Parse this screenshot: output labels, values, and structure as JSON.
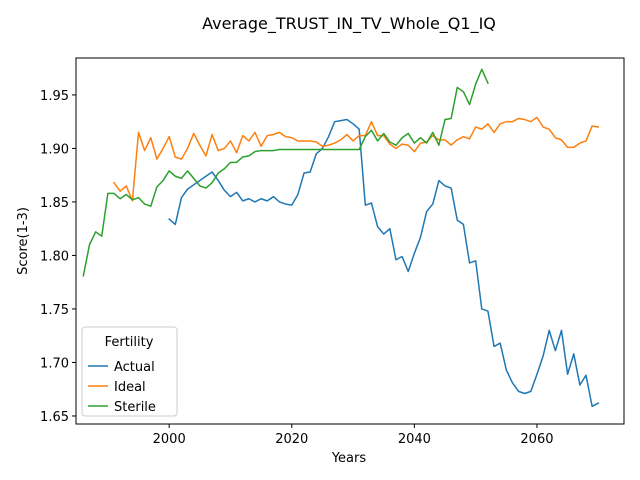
{
  "chart_data": {
    "type": "line",
    "title": "Average_TRUST_IN_TV_Whole_Q1_IQ",
    "xlabel": "Years",
    "ylabel": "Score(1-3)",
    "xlim": [
      1984.8,
      2074.2
    ],
    "ylim": [
      1.6425,
      1.9845
    ],
    "xticks": [
      2000,
      2020,
      2040,
      2060
    ],
    "yticks": [
      1.65,
      1.7,
      1.75,
      1.8,
      1.85,
      1.9,
      1.95
    ],
    "ytick_labels": [
      "1.65",
      "1.70",
      "1.75",
      "1.80",
      "1.85",
      "1.90",
      "1.95"
    ],
    "legend": {
      "title": "Fertility",
      "placement": "lower-left"
    },
    "colors": {
      "Actual": "#1f77b4",
      "Ideal": "#ff7f0e",
      "Sterile": "#2ca02c"
    },
    "series": [
      {
        "name": "Actual",
        "x": [
          2000,
          2001,
          2002,
          2003,
          2004,
          2005,
          2006,
          2007,
          2008,
          2009,
          2010,
          2011,
          2012,
          2013,
          2014,
          2015,
          2016,
          2017,
          2018,
          2019,
          2020,
          2021,
          2022,
          2023,
          2024,
          2025,
          2026,
          2027,
          2028,
          2029,
          2030,
          2031,
          2032,
          2033,
          2034,
          2035,
          2036,
          2037,
          2038,
          2039,
          2040,
          2041,
          2042,
          2043,
          2044,
          2045,
          2046,
          2047,
          2048,
          2049,
          2050,
          2051,
          2052,
          2053,
          2054,
          2055,
          2056,
          2057,
          2058,
          2059,
          2060,
          2061,
          2062,
          2063,
          2064,
          2065,
          2066,
          2067,
          2068,
          2069,
          2070
        ],
        "values": [
          1.834,
          1.829,
          1.854,
          1.862,
          1.866,
          1.87,
          1.874,
          1.878,
          1.87,
          1.861,
          1.855,
          1.859,
          1.851,
          1.853,
          1.85,
          1.853,
          1.851,
          1.855,
          1.85,
          1.848,
          1.847,
          1.857,
          1.877,
          1.878,
          1.895,
          1.9,
          1.911,
          1.925,
          1.926,
          1.927,
          1.923,
          1.918,
          1.847,
          1.849,
          1.827,
          1.82,
          1.825,
          1.796,
          1.799,
          1.785,
          1.802,
          1.817,
          1.841,
          1.848,
          1.87,
          1.865,
          1.863,
          1.833,
          1.829,
          1.793,
          1.795,
          1.75,
          1.748,
          1.715,
          1.718,
          1.693,
          1.681,
          1.673,
          1.671,
          1.673,
          1.689,
          1.706,
          1.73,
          1.711,
          1.73,
          1.689,
          1.708,
          1.679,
          1.688,
          1.659,
          1.662
        ]
      },
      {
        "name": "Ideal",
        "x": [
          1991,
          1992,
          1993,
          1994,
          1995,
          1996,
          1997,
          1998,
          1999,
          2000,
          2001,
          2002,
          2003,
          2004,
          2005,
          2006,
          2007,
          2008,
          2009,
          2010,
          2011,
          2012,
          2013,
          2014,
          2015,
          2016,
          2017,
          2018,
          2019,
          2020,
          2021,
          2022,
          2023,
          2024,
          2025,
          2026,
          2027,
          2028,
          2029,
          2030,
          2031,
          2032,
          2033,
          2034,
          2035,
          2036,
          2037,
          2038,
          2039,
          2040,
          2041,
          2042,
          2043,
          2044,
          2045,
          2046,
          2047,
          2048,
          2049,
          2050,
          2051,
          2052,
          2053,
          2054,
          2055,
          2056,
          2057,
          2058,
          2059,
          2060,
          2061,
          2062,
          2063,
          2064,
          2065,
          2066,
          2067,
          2068,
          2069,
          2070
        ],
        "values": [
          1.868,
          1.86,
          1.865,
          1.851,
          1.915,
          1.898,
          1.91,
          1.89,
          1.9,
          1.911,
          1.892,
          1.89,
          1.9,
          1.914,
          1.903,
          1.893,
          1.913,
          1.898,
          1.9,
          1.907,
          1.896,
          1.912,
          1.907,
          1.915,
          1.902,
          1.912,
          1.913,
          1.915,
          1.911,
          1.91,
          1.907,
          1.907,
          1.907,
          1.906,
          1.902,
          1.903,
          1.905,
          1.908,
          1.913,
          1.907,
          1.912,
          1.912,
          1.925,
          1.912,
          1.912,
          1.904,
          1.9,
          1.904,
          1.903,
          1.897,
          1.905,
          1.906,
          1.912,
          1.908,
          1.908,
          1.903,
          1.908,
          1.911,
          1.909,
          1.92,
          1.918,
          1.923,
          1.915,
          1.923,
          1.925,
          1.925,
          1.928,
          1.927,
          1.925,
          1.929,
          1.92,
          1.918,
          1.91,
          1.908,
          1.901,
          1.901,
          1.905,
          1.907,
          1.921,
          1.92
        ]
      },
      {
        "name": "Sterile",
        "x": [
          1986,
          1987,
          1988,
          1989,
          1990,
          1991,
          1992,
          1993,
          1994,
          1995,
          1996,
          1997,
          1998,
          1999,
          2000,
          2001,
          2002,
          2003,
          2004,
          2005,
          2006,
          2007,
          2008,
          2009,
          2010,
          2011,
          2012,
          2013,
          2014,
          2015,
          2016,
          2017,
          2018,
          2019,
          2020,
          2021,
          2022,
          2023,
          2024,
          2025,
          2026,
          2027,
          2028,
          2029,
          2030,
          2031,
          2032,
          2033,
          2034,
          2035,
          2036,
          2037,
          2038,
          2039,
          2040,
          2041,
          2042,
          2043,
          2044,
          2045,
          2046,
          2047,
          2048,
          2049,
          2050,
          2051,
          2052
        ],
        "values": [
          1.781,
          1.81,
          1.822,
          1.818,
          1.858,
          1.858,
          1.853,
          1.857,
          1.852,
          1.854,
          1.848,
          1.846,
          1.864,
          1.87,
          1.879,
          1.874,
          1.872,
          1.879,
          1.872,
          1.865,
          1.863,
          1.868,
          1.877,
          1.881,
          1.887,
          1.887,
          1.892,
          1.893,
          1.897,
          1.898,
          1.898,
          1.898,
          1.899,
          1.899,
          1.899,
          1.899,
          1.899,
          1.899,
          1.899,
          1.899,
          1.899,
          1.899,
          1.899,
          1.899,
          1.899,
          1.899,
          1.911,
          1.917,
          1.907,
          1.914,
          1.906,
          1.903,
          1.91,
          1.914,
          1.905,
          1.91,
          1.905,
          1.915,
          1.903,
          1.927,
          1.928,
          1.957,
          1.953,
          1.941,
          1.96,
          1.974,
          1.961
        ]
      }
    ]
  }
}
